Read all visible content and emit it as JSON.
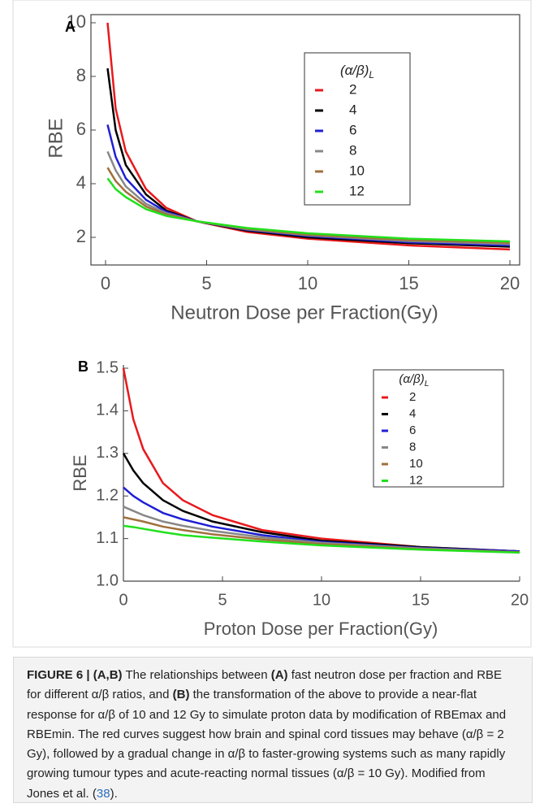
{
  "chart_data": [
    {
      "type": "line",
      "panel": "A",
      "x_label": "Neutron Dose per Fraction(Gy)",
      "y_label": "RBE",
      "legend_title": "(α/β)",
      "legend_title_sub": "L",
      "x": [
        0.1,
        0.5,
        1,
        2,
        3,
        4.5,
        7,
        10,
        15,
        20
      ],
      "xlim": [
        0,
        20
      ],
      "xticks": [
        0,
        5,
        10,
        15,
        20
      ],
      "ylim": [
        1,
        10
      ],
      "yticks": [
        2,
        4,
        6,
        8,
        10
      ],
      "series": [
        {
          "name": "2",
          "color": "#e8191c",
          "values": [
            10,
            6.8,
            5.2,
            3.8,
            3.1,
            2.6,
            2.2,
            1.95,
            1.7,
            1.55
          ]
        },
        {
          "name": "4",
          "color": "#000000",
          "values": [
            8.3,
            6.0,
            4.7,
            3.6,
            3.0,
            2.6,
            2.25,
            2.0,
            1.78,
            1.65
          ]
        },
        {
          "name": "6",
          "color": "#1f1fd6",
          "values": [
            6.2,
            5.0,
            4.2,
            3.4,
            2.95,
            2.6,
            2.28,
            2.05,
            1.82,
            1.7
          ]
        },
        {
          "name": "8",
          "color": "#888888",
          "values": [
            5.2,
            4.5,
            3.9,
            3.25,
            2.9,
            2.6,
            2.3,
            2.08,
            1.86,
            1.75
          ]
        },
        {
          "name": "10",
          "color": "#a0703c",
          "values": [
            4.6,
            4.1,
            3.7,
            3.15,
            2.85,
            2.6,
            2.32,
            2.1,
            1.9,
            1.8
          ]
        },
        {
          "name": "12",
          "color": "#22e01c",
          "values": [
            4.2,
            3.8,
            3.5,
            3.05,
            2.8,
            2.6,
            2.35,
            2.15,
            1.95,
            1.85
          ]
        }
      ]
    },
    {
      "type": "line",
      "panel": "B",
      "x_label": "Proton Dose per Fraction(Gy)",
      "y_label": "RBE",
      "legend_title": "(α/β)",
      "legend_title_sub": "L",
      "x": [
        0,
        0.5,
        1,
        2,
        3,
        4.5,
        7,
        10,
        15,
        20
      ],
      "xlim": [
        0,
        20
      ],
      "xticks": [
        0,
        5,
        10,
        15,
        20
      ],
      "ylim": [
        1.0,
        1.5
      ],
      "yticks": [
        {
          "value": 1.0,
          "label": "1.0"
        },
        1.1,
        1.2,
        1.3,
        1.4,
        1.5
      ],
      "series": [
        {
          "name": "2",
          "color": "#e8191c",
          "values": [
            1.5,
            1.38,
            1.31,
            1.23,
            1.19,
            1.155,
            1.12,
            1.1,
            1.08,
            1.07
          ]
        },
        {
          "name": "4",
          "color": "#000000",
          "values": [
            1.3,
            1.26,
            1.23,
            1.19,
            1.165,
            1.14,
            1.115,
            1.095,
            1.08,
            1.07
          ]
        },
        {
          "name": "6",
          "color": "#1f1fd6",
          "values": [
            1.22,
            1.2,
            1.185,
            1.16,
            1.145,
            1.128,
            1.108,
            1.092,
            1.078,
            1.07
          ]
        },
        {
          "name": "8",
          "color": "#888888",
          "values": [
            1.175,
            1.165,
            1.155,
            1.14,
            1.13,
            1.118,
            1.103,
            1.09,
            1.077,
            1.068
          ]
        },
        {
          "name": "10",
          "color": "#a0703c",
          "values": [
            1.15,
            1.145,
            1.14,
            1.128,
            1.12,
            1.11,
            1.098,
            1.087,
            1.075,
            1.068
          ]
        },
        {
          "name": "12",
          "color": "#22e01c",
          "values": [
            1.13,
            1.127,
            1.123,
            1.115,
            1.108,
            1.102,
            1.093,
            1.084,
            1.074,
            1.067
          ]
        }
      ]
    }
  ],
  "caption": [
    {
      "text": "FIGURE 6 | (A,B)",
      "style": "bold"
    },
    {
      "text": " The relationships between ",
      "style": "plain"
    },
    {
      "text": "(A)",
      "style": "bold"
    },
    {
      "text": " fast neutron dose per fraction and RBE for different α/β ratios, and ",
      "style": "plain"
    },
    {
      "text": "(B)",
      "style": "bold"
    },
    {
      "text": " the transformation of the above to provide a near-flat response for α/β of 10 and 12 Gy to simulate proton data by modification of RBEmax and RBEmin. The red curves suggest how brain and spinal cord tissues may behave (α/β = 2 Gy), followed by a gradual change in α/β to faster-growing systems such as many rapidly growing tumour types and acute-reacting normal tissues (α/β = 10 Gy). Modified from Jones et al. (",
      "style": "plain"
    },
    {
      "text": "38",
      "style": "link"
    },
    {
      "text": ").",
      "style": "plain"
    }
  ]
}
